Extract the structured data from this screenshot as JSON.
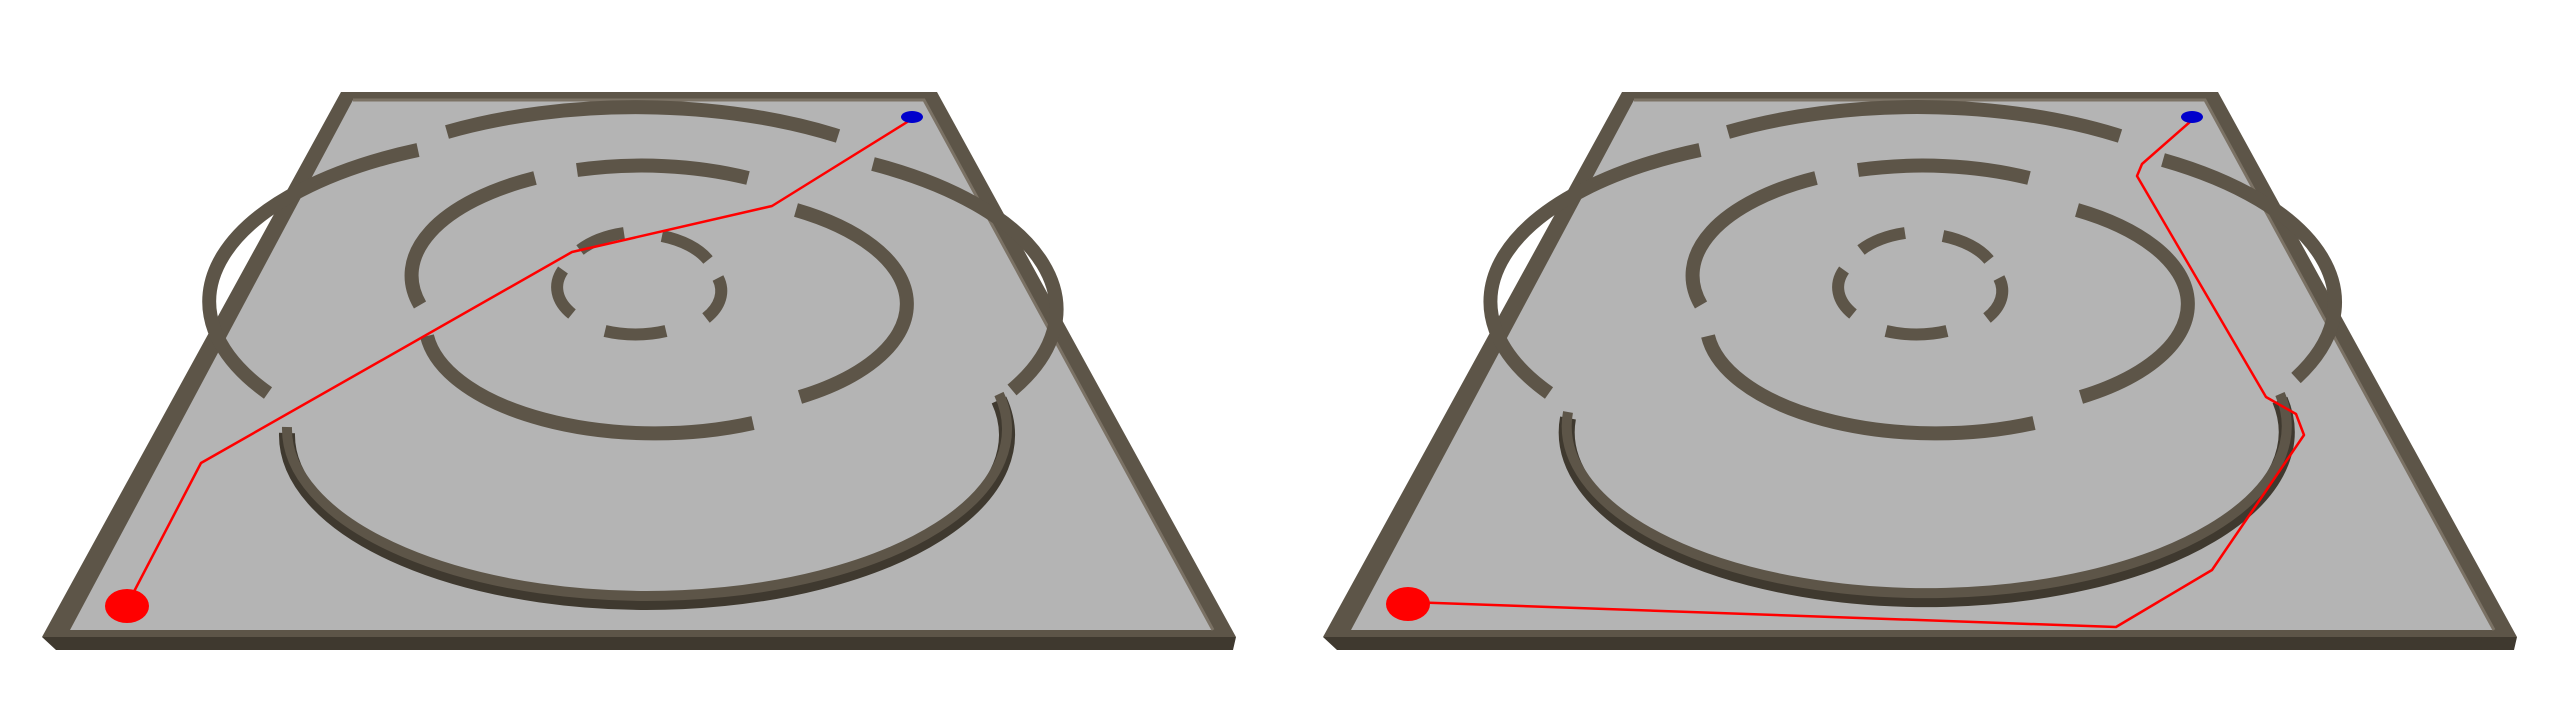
{
  "colors": {
    "background": "#ffffff",
    "floor": "#b4b4b4",
    "wall_top": "#5d5548",
    "wall_side": "#3f392f",
    "wall_highlight": "#7b7265",
    "path": "#ff0000",
    "start_marker": "#ff0000",
    "goal_marker": "#0000cc"
  },
  "icons": {
    "start": "red-disc",
    "goal": "blue-disc"
  },
  "panels": [
    {
      "name": "maze-panel-left",
      "path_label": "direct-path-through-gaps"
    },
    {
      "name": "maze-panel-right",
      "path_label": "path-around-outer-rings"
    }
  ]
}
